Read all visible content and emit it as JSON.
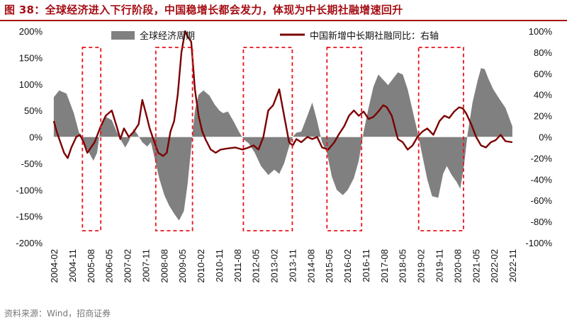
{
  "title": "图 38：全球经济进入下行阶段，中国稳增长都会发力，体现为中长期社融增速回升",
  "source": "资料来源：Wind，招商证券",
  "colors": {
    "area": "#808080",
    "line": "#7b0000",
    "box": "#e8141a",
    "title": "#a50f15"
  },
  "chart_data": {
    "type": "area+line",
    "title": "全球经济进入下行阶段，中国稳增长都会发力，体现为中长期社融增速回升",
    "legend": [
      "全球经济周期",
      "中国新增中长期社融同比：右轴"
    ],
    "left_axis": {
      "range": [
        -200,
        200
      ],
      "ticks": [
        "200%",
        "150%",
        "100%",
        "50%",
        "0%",
        "-50%",
        "-100%",
        "-150%",
        "-200%"
      ]
    },
    "right_axis": {
      "range": [
        -100,
        100
      ],
      "ticks": [
        "100%",
        "80%",
        "60%",
        "40%",
        "20%",
        "0%",
        "-20%",
        "-40%",
        "-60%",
        "-80%",
        "-100%"
      ]
    },
    "x_range": [
      2004.083,
      2022.833
    ],
    "x_ticks": [
      "2004-02",
      "2004-11",
      "2005-08",
      "2006-05",
      "2007-02",
      "2007-11",
      "2008-08",
      "2009-05",
      "2010-02",
      "2010-11",
      "2011-08",
      "2012-05",
      "2013-02",
      "2013-11",
      "2014-08",
      "2015-05",
      "2016-02",
      "2016-11",
      "2017-08",
      "2018-05",
      "2019-02",
      "2019-11",
      "2020-08",
      "2021-05",
      "2022-02",
      "2022-11"
    ],
    "series": [
      {
        "name": "全球经济周期",
        "axis": "left",
        "kind": "area",
        "points": [
          [
            2004.08,
            75
          ],
          [
            2004.3,
            88
          ],
          [
            2004.6,
            82
          ],
          [
            2004.9,
            45
          ],
          [
            2005.1,
            10
          ],
          [
            2005.3,
            -12
          ],
          [
            2005.5,
            -28
          ],
          [
            2005.7,
            -45
          ],
          [
            2005.85,
            -30
          ],
          [
            2006.0,
            20
          ],
          [
            2006.2,
            38
          ],
          [
            2006.45,
            32
          ],
          [
            2006.65,
            10
          ],
          [
            2006.85,
            -8
          ],
          [
            2007.0,
            -20
          ],
          [
            2007.15,
            -8
          ],
          [
            2007.35,
            15
          ],
          [
            2007.5,
            5
          ],
          [
            2007.7,
            -10
          ],
          [
            2007.9,
            -18
          ],
          [
            2008.05,
            -10
          ],
          [
            2008.2,
            -40
          ],
          [
            2008.4,
            -80
          ],
          [
            2008.6,
            -110
          ],
          [
            2008.8,
            -130
          ],
          [
            2009.0,
            -145
          ],
          [
            2009.2,
            -158
          ],
          [
            2009.4,
            -140
          ],
          [
            2009.55,
            -90
          ],
          [
            2009.7,
            -20
          ],
          [
            2009.85,
            50
          ],
          [
            2010.0,
            80
          ],
          [
            2010.2,
            88
          ],
          [
            2010.45,
            78
          ],
          [
            2010.65,
            62
          ],
          [
            2010.85,
            50
          ],
          [
            2011.0,
            45
          ],
          [
            2011.2,
            48
          ],
          [
            2011.45,
            28
          ],
          [
            2011.65,
            10
          ],
          [
            2011.85,
            -5
          ],
          [
            2012.05,
            -12
          ],
          [
            2012.3,
            -30
          ],
          [
            2012.55,
            -55
          ],
          [
            2012.85,
            -72
          ],
          [
            2013.1,
            -62
          ],
          [
            2013.3,
            -70
          ],
          [
            2013.5,
            -50
          ],
          [
            2013.7,
            -18
          ],
          [
            2013.85,
            0
          ],
          [
            2014.0,
            8
          ],
          [
            2014.2,
            10
          ],
          [
            2014.45,
            40
          ],
          [
            2014.65,
            65
          ],
          [
            2014.85,
            30
          ],
          [
            2015.05,
            -10
          ],
          [
            2015.25,
            -30
          ],
          [
            2015.45,
            -75
          ],
          [
            2015.65,
            -100
          ],
          [
            2015.9,
            -110
          ],
          [
            2016.1,
            -100
          ],
          [
            2016.35,
            -78
          ],
          [
            2016.55,
            -45
          ],
          [
            2016.75,
            10
          ],
          [
            2016.95,
            55
          ],
          [
            2017.15,
            95
          ],
          [
            2017.35,
            118
          ],
          [
            2017.55,
            108
          ],
          [
            2017.75,
            98
          ],
          [
            2017.95,
            110
          ],
          [
            2018.15,
            122
          ],
          [
            2018.35,
            118
          ],
          [
            2018.55,
            90
          ],
          [
            2018.75,
            50
          ],
          [
            2018.95,
            10
          ],
          [
            2019.15,
            -35
          ],
          [
            2019.35,
            -80
          ],
          [
            2019.55,
            -112
          ],
          [
            2019.8,
            -115
          ],
          [
            2020.0,
            -70
          ],
          [
            2020.15,
            -55
          ],
          [
            2020.35,
            -72
          ],
          [
            2020.55,
            -85
          ],
          [
            2020.7,
            -98
          ],
          [
            2020.85,
            -55
          ],
          [
            2021.0,
            5
          ],
          [
            2021.2,
            65
          ],
          [
            2021.4,
            105
          ],
          [
            2021.55,
            130
          ],
          [
            2021.7,
            128
          ],
          [
            2021.85,
            110
          ],
          [
            2022.05,
            90
          ],
          [
            2022.3,
            72
          ],
          [
            2022.55,
            55
          ],
          [
            2022.83,
            20
          ]
        ]
      },
      {
        "name": "中国新增中长期社融同比：右轴",
        "axis": "right",
        "kind": "line",
        "points": [
          [
            2004.08,
            15
          ],
          [
            2004.2,
            5
          ],
          [
            2004.35,
            -5
          ],
          [
            2004.5,
            -15
          ],
          [
            2004.65,
            -20
          ],
          [
            2004.8,
            -10
          ],
          [
            2005.0,
            0
          ],
          [
            2005.15,
            2
          ],
          [
            2005.3,
            -5
          ],
          [
            2005.45,
            -15
          ],
          [
            2005.6,
            -10
          ],
          [
            2005.75,
            -5
          ],
          [
            2006.0,
            10
          ],
          [
            2006.2,
            20
          ],
          [
            2006.45,
            25
          ],
          [
            2006.65,
            10
          ],
          [
            2006.8,
            -2
          ],
          [
            2006.95,
            8
          ],
          [
            2007.15,
            0
          ],
          [
            2007.35,
            5
          ],
          [
            2007.55,
            12
          ],
          [
            2007.7,
            35
          ],
          [
            2007.85,
            22
          ],
          [
            2008.0,
            8
          ],
          [
            2008.15,
            -2
          ],
          [
            2008.35,
            -15
          ],
          [
            2008.55,
            -18
          ],
          [
            2008.7,
            -15
          ],
          [
            2008.85,
            5
          ],
          [
            2009.0,
            15
          ],
          [
            2009.15,
            40
          ],
          [
            2009.3,
            80
          ],
          [
            2009.45,
            100
          ],
          [
            2009.55,
            95
          ],
          [
            2009.7,
            90
          ],
          [
            2009.85,
            45
          ],
          [
            2010.0,
            20
          ],
          [
            2010.15,
            5
          ],
          [
            2010.3,
            -3
          ],
          [
            2010.5,
            -12
          ],
          [
            2010.7,
            -15
          ],
          [
            2010.9,
            -12
          ],
          [
            2011.15,
            -11
          ],
          [
            2011.5,
            -10
          ],
          [
            2011.8,
            -12
          ],
          [
            2012.05,
            -10
          ],
          [
            2012.25,
            -8
          ],
          [
            2012.45,
            -12
          ],
          [
            2012.65,
            0
          ],
          [
            2012.85,
            25
          ],
          [
            2013.05,
            30
          ],
          [
            2013.3,
            45
          ],
          [
            2013.5,
            20
          ],
          [
            2013.7,
            -5
          ],
          [
            2013.85,
            -8
          ],
          [
            2014.0,
            -2
          ],
          [
            2014.2,
            -5
          ],
          [
            2014.45,
            0
          ],
          [
            2014.65,
            -2
          ],
          [
            2014.85,
            0
          ],
          [
            2015.05,
            -10
          ],
          [
            2015.3,
            -12
          ],
          [
            2015.55,
            -5
          ],
          [
            2015.75,
            3
          ],
          [
            2015.95,
            10
          ],
          [
            2016.15,
            20
          ],
          [
            2016.35,
            25
          ],
          [
            2016.55,
            20
          ],
          [
            2016.75,
            24
          ],
          [
            2016.95,
            17
          ],
          [
            2017.15,
            19
          ],
          [
            2017.35,
            24
          ],
          [
            2017.55,
            30
          ],
          [
            2017.7,
            28
          ],
          [
            2017.9,
            20
          ],
          [
            2018.15,
            -2
          ],
          [
            2018.35,
            -5
          ],
          [
            2018.55,
            -12
          ],
          [
            2018.75,
            -8
          ],
          [
            2018.95,
            0
          ],
          [
            2019.15,
            5
          ],
          [
            2019.35,
            8
          ],
          [
            2019.6,
            2
          ],
          [
            2019.85,
            15
          ],
          [
            2020.05,
            20
          ],
          [
            2020.25,
            18
          ],
          [
            2020.45,
            24
          ],
          [
            2020.65,
            28
          ],
          [
            2020.8,
            27
          ],
          [
            2020.95,
            22
          ],
          [
            2021.15,
            12
          ],
          [
            2021.35,
            0
          ],
          [
            2021.55,
            -8
          ],
          [
            2021.75,
            -10
          ],
          [
            2021.95,
            -5
          ],
          [
            2022.15,
            -3
          ],
          [
            2022.35,
            2
          ],
          [
            2022.55,
            -4
          ],
          [
            2022.83,
            -5
          ]
        ]
      }
    ],
    "highlight_periods": [
      [
        "2005-04",
        "2006-01"
      ],
      [
        "2008-04",
        "2009-10"
      ],
      [
        "2011-11",
        "2013-11"
      ],
      [
        "2015-04",
        "2016-09"
      ],
      [
        "2019-01",
        "2020-11"
      ]
    ]
  }
}
